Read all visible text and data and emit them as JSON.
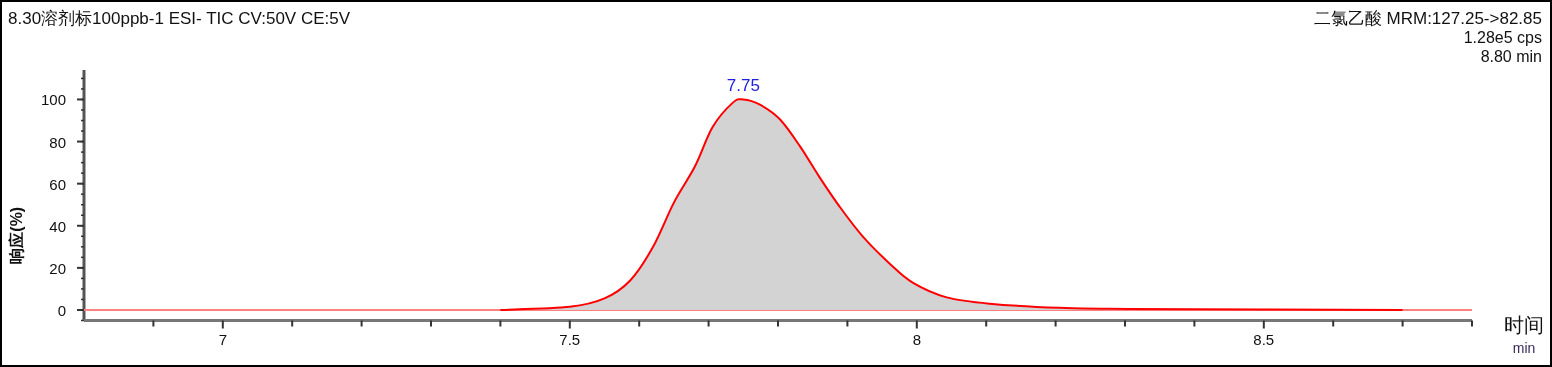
{
  "chart_data": {
    "type": "area",
    "title": "8.30溶剂标100ppb-1 ESI- TIC CV:50V CE:5V",
    "xlabel": "时间",
    "ylabel": "响应(%)",
    "annotations": [
      "二氯乙酸 MRM:127.25->82.85",
      "1.28e5 cps",
      "8.80 min",
      "min",
      {
        "text": "7.75",
        "x": 7.75,
        "y": 100
      }
    ],
    "xlim": [
      6.8,
      8.8
    ],
    "ylim": [
      -5,
      114
    ],
    "xticks": [
      {
        "value": 6.9,
        "label": null
      },
      7,
      {
        "value": 7.1,
        "label": null
      },
      {
        "value": 7.2,
        "label": null
      },
      {
        "value": 7.3,
        "label": null
      },
      {
        "value": 7.4,
        "label": null
      },
      7.5,
      {
        "value": 7.6,
        "label": null
      },
      {
        "value": 7.7,
        "label": null
      },
      {
        "value": 7.8,
        "label": null
      },
      {
        "value": 7.9,
        "label": null
      },
      8,
      {
        "value": 8.1,
        "label": null
      },
      {
        "value": 8.2,
        "label": null
      },
      {
        "value": 8.3,
        "label": null
      },
      {
        "value": 8.4,
        "label": null
      },
      8.5,
      {
        "value": 8.6,
        "label": null
      },
      {
        "value": 8.7,
        "label": null
      },
      {
        "value": 8.8,
        "label": null
      }
    ],
    "yticks": [
      0,
      20,
      40,
      60,
      80,
      100
    ],
    "series": [
      {
        "type": "line",
        "color": "#ff8080",
        "x": [
          6.8,
          8.8
        ],
        "values": [
          0,
          0
        ]
      },
      {
        "color": "#ff0000",
        "x": [
          7.4,
          7.5,
          7.55,
          7.587,
          7.62,
          7.65,
          7.68,
          7.706,
          7.735,
          7.75,
          7.774,
          7.803,
          7.832,
          7.86,
          7.889,
          7.922,
          7.961,
          7.994,
          8.043,
          8.105,
          8.205,
          8.306,
          8.7
        ],
        "values": [
          0,
          1.5,
          5.5,
          14,
          30,
          51,
          68,
          87,
          98.5,
          100,
          97.5,
          90.5,
          77.6,
          63,
          49,
          35,
          22,
          13,
          6,
          3,
          1,
          0.5,
          0
        ]
      }
    ]
  }
}
